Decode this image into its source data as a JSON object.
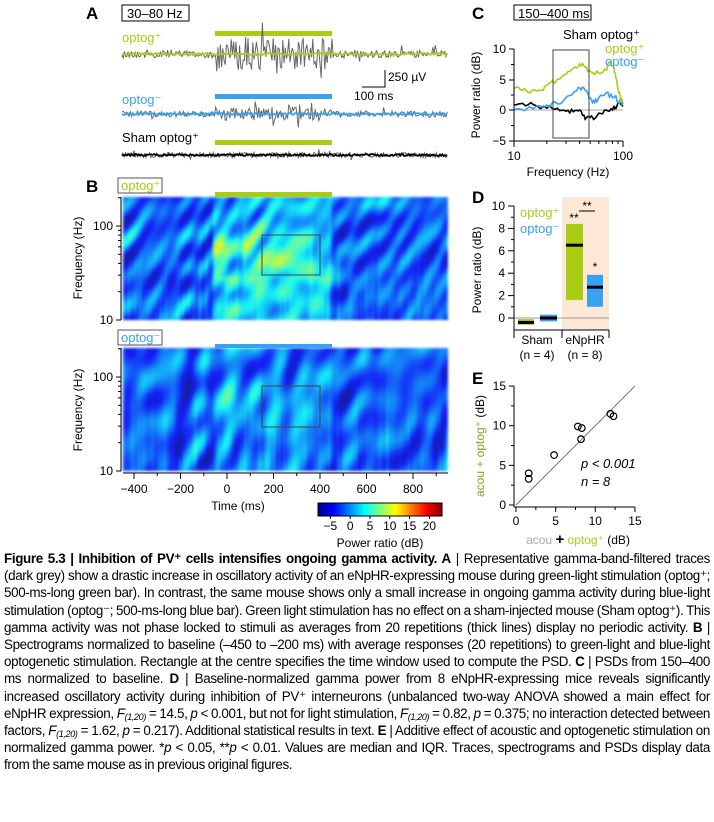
{
  "colors": {
    "green": "#a9cc14",
    "blue": "#3aa0f0",
    "grey": "#5a5a5a",
    "black": "#000000",
    "enphr_bg": "#fde8d6"
  },
  "panel_a": {
    "label": "A",
    "band_box": "30–80 Hz",
    "trace_labels": [
      "optog⁺",
      "optog⁻",
      "Sham optog⁺"
    ],
    "scale_v": "250 µV",
    "scale_t": "100 ms"
  },
  "panel_b": {
    "label": "B",
    "box_top": "optog⁺",
    "box_bottom": "optog⁻",
    "ylabel": "Frequency (Hz)",
    "yticks": [
      "100",
      "10"
    ],
    "xlabel": "Time (ms)",
    "xticks": [
      "−400",
      "−200",
      "0",
      "200",
      "400",
      "600",
      "800"
    ],
    "colorbar_ticks": [
      "−5",
      "0",
      "5",
      "10",
      "15",
      "20"
    ],
    "colorbar_label": "Power ratio (dB)",
    "colorbar_range": [
      -5,
      20
    ],
    "window_rect": {
      "t_ms": [
        150,
        400
      ],
      "f_hz": [
        30,
        80
      ]
    }
  },
  "chart_data": [
    {
      "panel": "C",
      "type": "line",
      "box_label": "150–400 ms",
      "xlabel": "Frequency (Hz)",
      "ylabel": "Power ratio (dB)",
      "xscale": "log",
      "xlim": [
        10,
        100
      ],
      "ylim": [
        -5,
        10
      ],
      "xticks": [
        "10",
        "100"
      ],
      "yticks": [
        "10",
        "5",
        "0",
        "−5"
      ],
      "legend": [
        "Sham optog⁺",
        "optog⁺",
        "optog⁻"
      ],
      "legend_position": "top-right",
      "series": [
        {
          "name": "optog⁺",
          "color": "#a9cc14",
          "x": [
            10,
            12,
            14,
            17,
            20,
            25,
            30,
            35,
            40,
            45,
            50,
            60,
            70,
            75,
            80,
            85,
            90,
            95,
            100
          ],
          "y": [
            3.5,
            3.2,
            2.8,
            3.2,
            4,
            5,
            5.8,
            6.8,
            7.5,
            7,
            6.3,
            6,
            6.5,
            7.8,
            7.2,
            6,
            3.5,
            2,
            1.5
          ]
        },
        {
          "name": "optog⁻",
          "color": "#3aa0f0",
          "x": [
            10,
            15,
            20,
            25,
            30,
            35,
            40,
            45,
            50,
            55,
            60,
            70,
            80,
            85,
            90,
            95,
            100
          ],
          "y": [
            0.1,
            0.2,
            0.8,
            1,
            2,
            2.8,
            3.6,
            3.2,
            2,
            1.2,
            2,
            2.8,
            2,
            2.3,
            1.2,
            1.8,
            1
          ]
        },
        {
          "name": "Sham optog⁺",
          "color": "#000000",
          "x": [
            10,
            12,
            15,
            20,
            25,
            30,
            35,
            40,
            45,
            50,
            55,
            60,
            70,
            80,
            85,
            90,
            100
          ],
          "y": [
            0.9,
            1.1,
            0.9,
            0.3,
            0.3,
            -0.2,
            -0.3,
            0,
            -1.5,
            -1.2,
            -1.4,
            -0.5,
            0,
            0,
            0.4,
            1.2,
            0.6
          ]
        }
      ],
      "window_rect_hz": [
        30,
        80
      ]
    },
    {
      "panel": "D",
      "type": "bar",
      "ylabel": "Power ratio (dB)",
      "ylim": [
        -1,
        10
      ],
      "yticks": [
        "10",
        "8",
        "6",
        "4",
        "2",
        "0"
      ],
      "legend": [
        "optog⁺",
        "optog⁻"
      ],
      "legend_position": "top-left",
      "groups": [
        {
          "name": "Sham",
          "n_label": "(n = 4)",
          "optog_plus": {
            "q1": -0.6,
            "median": -0.4,
            "q3": -0.1
          },
          "optog_minus": {
            "q1": -0.3,
            "median": 0,
            "q3": 0.3
          }
        },
        {
          "name": "eNpHR",
          "n_label": "(n = 8)",
          "optog_plus": {
            "q1": 1.6,
            "median": 6.5,
            "q3": 8.4,
            "sig": "**"
          },
          "optog_minus": {
            "q1": 1.0,
            "median": 2.75,
            "q3": 3.85,
            "sig": "*"
          },
          "between_sig": "**"
        }
      ]
    },
    {
      "panel": "E",
      "type": "scatter",
      "xlabel_parts": [
        "acou",
        "+",
        "optog⁺",
        "(dB)"
      ],
      "ylabel_parts": [
        "acou + optog⁺",
        "(dB)"
      ],
      "xlim": [
        0,
        15
      ],
      "ylim": [
        0,
        15
      ],
      "xticks": [
        "0",
        "5",
        "10",
        "15"
      ],
      "yticks": [
        "0",
        "5",
        "10",
        "15"
      ],
      "identity_line": true,
      "points": [
        [
          1.6,
          4.0
        ],
        [
          1.6,
          3.3
        ],
        [
          4.8,
          6.3
        ],
        [
          7.8,
          9.9
        ],
        [
          8.3,
          9.7
        ],
        [
          8.2,
          8.3
        ],
        [
          11.9,
          11.5
        ],
        [
          12.3,
          11.2
        ]
      ],
      "annotation": [
        "p < 0.001",
        "n = 8"
      ]
    }
  ],
  "caption": {
    "segments": [
      {
        "t": "Figure 5.3 | Inhibition of PV⁺ cells intensifies ongoing gamma activity. A",
        "s": "b"
      },
      {
        "t": " | Representative gamma-band-filtered traces (dark grey) show a drastic increase in oscillatory activity of an eNpHR-expressing mouse during green-light stimulation (optog⁺; 500-ms-long green bar). In contrast, the same mouse shows only a small increase in ongoing gamma activity during blue-light stimulation (optog⁻; 500-ms-long blue bar). Green light stimulation has no effect on a sham-injected mouse (Sham optog⁺). This gamma activity was not phase locked to stimuli as averages from 20 repetitions (thick lines) display no periodic activity. "
      },
      {
        "t": "B",
        "s": "b"
      },
      {
        "t": " | Spectrograms normalized to baseline (–450 to –200 ms) with average responses (20 repetitions) to green-light and blue-light optogenetic stimulation. Rectangle at the centre specifies the time window used to compute the PSD. "
      },
      {
        "t": "C",
        "s": "b"
      },
      {
        "t": " | PSDs from 150–400 ms normalized to baseline. "
      },
      {
        "t": "D",
        "s": "b"
      },
      {
        "t": " | Baseline-normalized gamma power from 8 eNpHR-expressing mice reveals significantly increased oscillatory activity during inhibition of PV⁺ interneurons (unbalanced two-way ANOVA showed a main effect for eNpHR expression, "
      },
      {
        "t": "F",
        "s": "i"
      },
      {
        "t": "(1,20)",
        "s": "sub"
      },
      {
        "t": " = 14.5, "
      },
      {
        "t": "p",
        "s": "i"
      },
      {
        "t": " < 0.001, but not for light stimulation, "
      },
      {
        "t": "F",
        "s": "i"
      },
      {
        "t": "(1,20)",
        "s": "sub"
      },
      {
        "t": " = 0.82, "
      },
      {
        "t": "p",
        "s": "i"
      },
      {
        "t": " = 0.375; no interaction detected between factors, "
      },
      {
        "t": "F",
        "s": "i"
      },
      {
        "t": "(1,20)",
        "s": "sub"
      },
      {
        "t": " = 1.62, "
      },
      {
        "t": "p",
        "s": "i"
      },
      {
        "t": " = 0.217). Additional statistical results in text. "
      },
      {
        "t": "E",
        "s": "b"
      },
      {
        "t": " | Additive effect of acoustic and optogenetic stimulation on normalized gamma power. *"
      },
      {
        "t": "p",
        "s": "i"
      },
      {
        "t": " < 0.05, **"
      },
      {
        "t": "p",
        "s": "i"
      },
      {
        "t": " < 0.01. Values are median and IQR. Traces, spectrograms and PSDs display data from the same mouse as in previous original figures."
      }
    ]
  }
}
